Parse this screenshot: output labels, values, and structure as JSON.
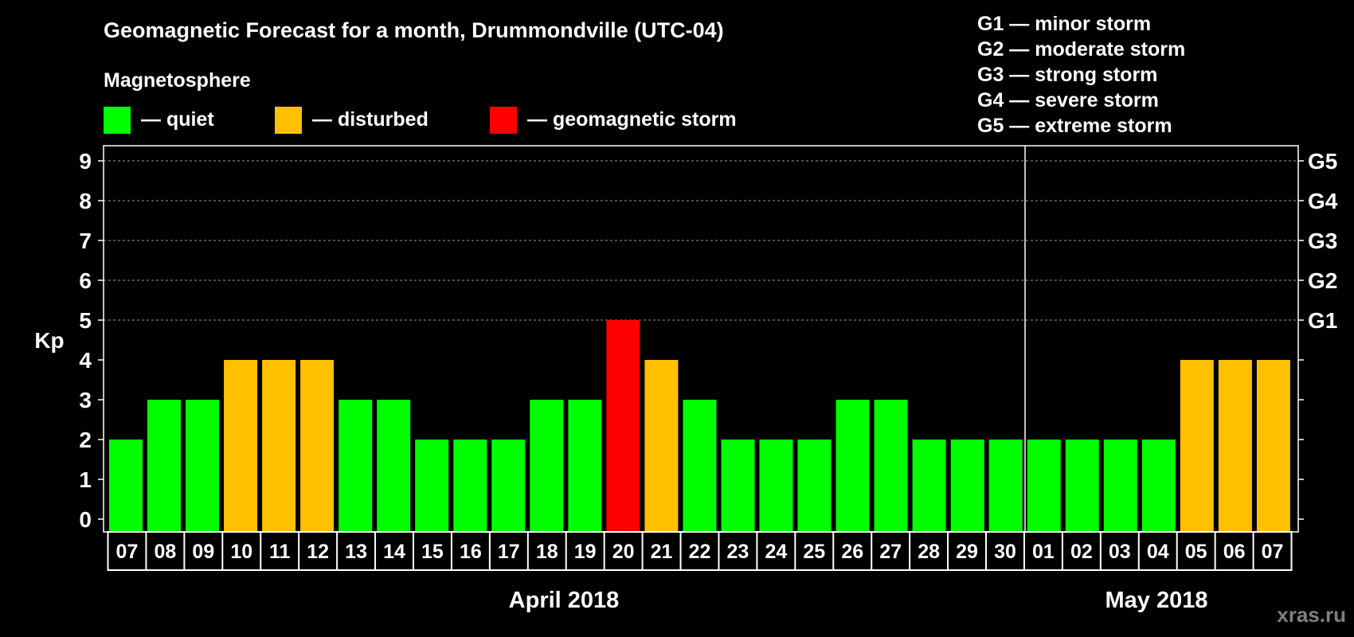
{
  "chart_data": {
    "type": "bar",
    "title": "Geomagnetic Forecast for a month, Drummondville (UTC-04)",
    "ylabel": "Kp",
    "ylim": [
      0,
      9
    ],
    "yticks": [
      "0",
      "1",
      "2",
      "3",
      "4",
      "5",
      "6",
      "7",
      "8",
      "9"
    ],
    "gscale": [
      {
        "kp": 5,
        "label": "G1"
      },
      {
        "kp": 6,
        "label": "G2"
      },
      {
        "kp": 7,
        "label": "G3"
      },
      {
        "kp": 8,
        "label": "G4"
      },
      {
        "kp": 9,
        "label": "G5"
      }
    ],
    "legend_title": "Magnetosphere",
    "legend": [
      {
        "label": "— quiet",
        "color": "#00ff00"
      },
      {
        "label": "— disturbed",
        "color": "#ffc000"
      },
      {
        "label": "— geomagnetic storm",
        "color": "#ff0000"
      }
    ],
    "storm_scale": [
      "G1 — minor storm",
      "G2 — moderate storm",
      "G3 — strong storm",
      "G4 — severe storm",
      "G5 — extreme storm"
    ],
    "months": [
      "April 2018",
      "May 2018"
    ],
    "categories": [
      "07",
      "08",
      "09",
      "10",
      "11",
      "12",
      "13",
      "14",
      "15",
      "16",
      "17",
      "18",
      "19",
      "20",
      "21",
      "22",
      "23",
      "24",
      "25",
      "26",
      "27",
      "28",
      "29",
      "30",
      "01",
      "02",
      "03",
      "04",
      "05",
      "06",
      "07"
    ],
    "values": [
      2,
      3,
      3,
      4,
      4,
      4,
      3,
      3,
      2,
      2,
      2,
      3,
      3,
      5,
      4,
      3,
      2,
      2,
      2,
      3,
      3,
      2,
      2,
      2,
      2,
      2,
      2,
      2,
      4,
      4,
      4
    ],
    "colors": {
      "quiet": "#00ff00",
      "disturbed": "#ffc000",
      "storm": "#ff0000"
    },
    "watermark": "xras.ru"
  }
}
